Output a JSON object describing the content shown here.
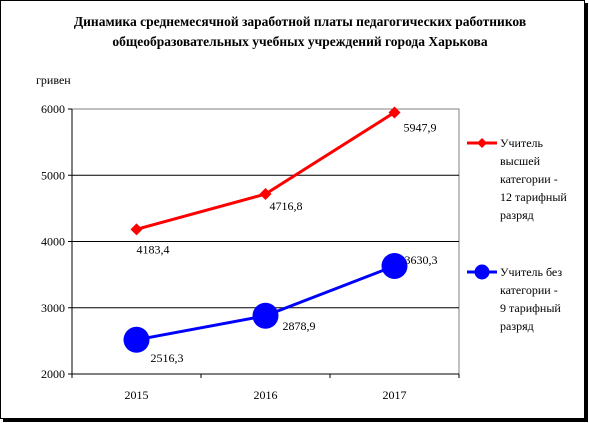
{
  "chart_data": {
    "type": "line",
    "title": "Динамика среднемесячной заработной платы педагогических работников общеобразовательных учебных учреждений города Харькова",
    "ylabel": "гривен",
    "xlabel": "",
    "categories": [
      "2015",
      "2016",
      "2017"
    ],
    "ylim": [
      2000,
      6000
    ],
    "yticks": [
      "2000",
      "3000",
      "4000",
      "5000",
      "6000"
    ],
    "grid": true,
    "legend_position": "right",
    "series": [
      {
        "name": "Учитель высшей категории - 12 тарифный разряд",
        "legend_lines": [
          "Учитель",
          "высшей",
          "категории -",
          "12 тарифный",
          "разряд"
        ],
        "values": [
          4183.4,
          4716.8,
          5947.9
        ],
        "labels": [
          "4183,4",
          "4716,8",
          "5947,9"
        ],
        "color": "#ff0000",
        "marker": "diamond"
      },
      {
        "name": "Учитель без категории - 9 тарифный разряд",
        "legend_lines": [
          "Учитель без",
          "категории -",
          "9 тарифный",
          "разряд"
        ],
        "values": [
          2516.3,
          2878.9,
          3630.3
        ],
        "labels": [
          "2516,3",
          "2878,9",
          "3630,3"
        ],
        "color": "#0000ff",
        "marker": "circle"
      }
    ]
  }
}
